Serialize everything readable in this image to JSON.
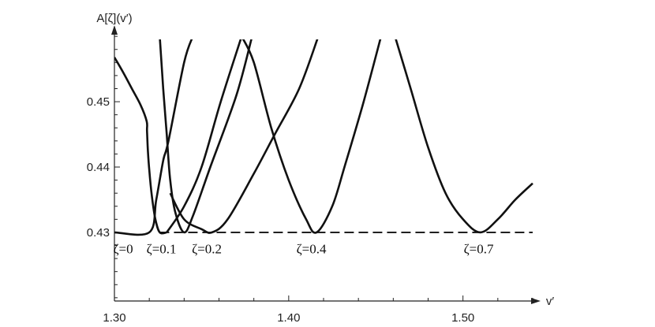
{
  "chart_data": {
    "type": "line",
    "xlabel": "v′",
    "ylabel": "A[ζ](v′)",
    "xlim": [
      1.3,
      1.54
    ],
    "ylim": [
      0.4195,
      0.4605
    ],
    "x_ticks": [
      {
        "value": 1.3,
        "label": "1.30"
      },
      {
        "value": 1.4,
        "label": "1.40"
      },
      {
        "value": 1.5,
        "label": "1.50"
      }
    ],
    "y_ticks": [
      {
        "value": 0.43,
        "label": "0.43"
      },
      {
        "value": 0.44,
        "label": "0.44"
      },
      {
        "value": 0.45,
        "label": "0.45"
      }
    ],
    "grid": false,
    "baseline": {
      "y": 0.43,
      "x_start": 1.326,
      "x_end": 1.54,
      "style": "dashed"
    },
    "series": [
      {
        "label": "ζ=0",
        "points": [
          [
            1.3,
            0.4568
          ],
          [
            1.305,
            0.4545
          ],
          [
            1.31,
            0.452
          ],
          [
            1.315,
            0.4495
          ],
          [
            1.3185,
            0.447
          ],
          [
            1.3187,
            0.4455
          ],
          [
            1.3192,
            0.4425
          ],
          [
            1.32,
            0.4395
          ],
          [
            1.3215,
            0.4355
          ],
          [
            1.3235,
            0.432
          ],
          [
            1.326,
            0.43
          ],
          [
            1.33,
            0.43
          ]
        ]
      },
      {
        "label": "ζ=0.1",
        "points": [
          [
            1.3,
            0.43
          ],
          [
            1.32,
            0.43
          ],
          [
            1.324,
            0.435
          ],
          [
            1.328,
            0.441
          ],
          [
            1.331,
            0.444
          ],
          [
            1.34,
            0.456
          ],
          [
            1.345,
            0.46
          ]
        ]
      },
      {
        "label": "ζ=0.1",
        "points": [
          [
            1.326,
            0.46
          ],
          [
            1.328,
            0.452
          ],
          [
            1.33,
            0.445
          ],
          [
            1.332,
            0.438
          ],
          [
            1.335,
            0.433
          ],
          [
            1.34,
            0.43
          ],
          [
            1.345,
            0.4325
          ],
          [
            1.355,
            0.44
          ],
          [
            1.37,
            0.451
          ],
          [
            1.379,
            0.46
          ]
        ]
      },
      {
        "label": "ζ=0.2",
        "points": [
          [
            1.33,
            0.43
          ],
          [
            1.34,
            0.434
          ],
          [
            1.35,
            0.44
          ],
          [
            1.361,
            0.45
          ],
          [
            1.373,
            0.46
          ]
        ]
      },
      {
        "label": "ζ=0.2",
        "points": [
          [
            1.332,
            0.436
          ],
          [
            1.34,
            0.432
          ],
          [
            1.35,
            0.4305
          ],
          [
            1.356,
            0.43
          ],
          [
            1.365,
            0.432
          ],
          [
            1.38,
            0.439
          ],
          [
            1.392,
            0.445
          ],
          [
            1.406,
            0.452
          ],
          [
            1.417,
            0.46
          ]
        ]
      },
      {
        "label": "ζ=0.4",
        "points": [
          [
            1.373,
            0.46
          ],
          [
            1.38,
            0.456
          ],
          [
            1.39,
            0.446
          ],
          [
            1.4,
            0.438
          ],
          [
            1.41,
            0.432
          ],
          [
            1.416,
            0.43
          ],
          [
            1.425,
            0.434
          ],
          [
            1.432,
            0.44
          ],
          [
            1.443,
            0.45
          ],
          [
            1.453,
            0.46
          ]
        ]
      },
      {
        "label": "ζ=0.7",
        "points": [
          [
            1.461,
            0.46
          ],
          [
            1.47,
            0.452
          ],
          [
            1.48,
            0.443
          ],
          [
            1.49,
            0.436
          ],
          [
            1.5,
            0.432
          ],
          [
            1.51,
            0.43
          ],
          [
            1.52,
            0.432
          ],
          [
            1.53,
            0.435
          ],
          [
            1.54,
            0.4375
          ]
        ]
      }
    ],
    "annotations": [
      {
        "text": "ζ=0",
        "x": 1.305,
        "y": 0.4275
      },
      {
        "text": "ζ=0.1",
        "x": 1.327,
        "y": 0.4275
      },
      {
        "text": "ζ=0.2",
        "x": 1.353,
        "y": 0.4275
      },
      {
        "text": "ζ=0.4",
        "x": 1.413,
        "y": 0.4275
      },
      {
        "text": "ζ=0.7",
        "x": 1.509,
        "y": 0.4275
      }
    ]
  }
}
